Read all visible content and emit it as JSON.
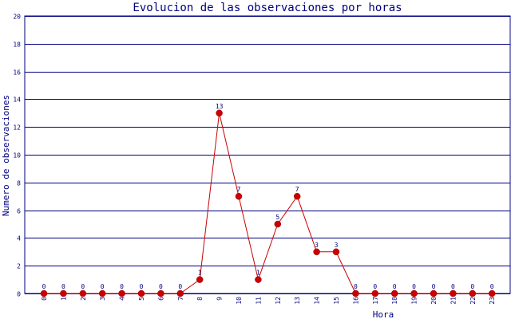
{
  "chart_data": {
    "type": "line",
    "title": "Evolucion de las observaciones por horas",
    "xlabel": "Hora",
    "ylabel": "Numero de observaciones",
    "x": [
      "0",
      "1",
      "2",
      "3",
      "4",
      "5",
      "6",
      "7",
      "8",
      "9",
      "10",
      "11",
      "12",
      "13",
      "14",
      "15",
      "16",
      "17",
      "18",
      "19",
      "20",
      "21",
      "22",
      "23"
    ],
    "series": [
      {
        "values": [
          0,
          0,
          0,
          0,
          0,
          0,
          0,
          0,
          1,
          13,
          7,
          1,
          5,
          7,
          3,
          3,
          0,
          0,
          0,
          0,
          0,
          0,
          0,
          0
        ]
      }
    ],
    "ylim": [
      0,
      20
    ],
    "yticks": [
      0,
      2,
      4,
      6,
      8,
      10,
      12,
      14,
      16,
      18,
      20
    ],
    "grid": true,
    "data_labels": true
  },
  "colors": {
    "title": "#000080",
    "axis_text": "#000080",
    "grid": "#000080",
    "line": "#cc0000",
    "marker": "#cc0000"
  }
}
